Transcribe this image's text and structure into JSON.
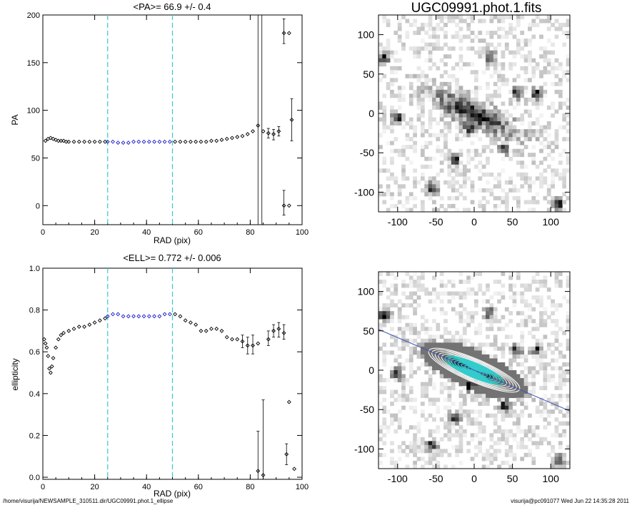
{
  "chart_data": [
    {
      "id": "pa",
      "type": "scatter",
      "title": "<PA>=  66.9 +/-   0.4",
      "xlabel": "RAD (pix)",
      "ylabel": "PA",
      "xlim": [
        0,
        100
      ],
      "ylim": [
        -20,
        200
      ],
      "xticks": [
        "0",
        "20",
        "40",
        "60",
        "80",
        "100"
      ],
      "yticks": [
        "0",
        "50",
        "100",
        "150",
        "200"
      ],
      "vlines": [
        25,
        50
      ],
      "vline_color": "#33cccc",
      "series": [
        {
          "color": "#000000",
          "points": [
            [
              1,
              68
            ],
            [
              2,
              70
            ],
            [
              3,
              71
            ],
            [
              4,
              70
            ],
            [
              5,
              69
            ],
            [
              6,
              68
            ],
            [
              7,
              68
            ],
            [
              8,
              68
            ],
            [
              9,
              67
            ],
            [
              10,
              67
            ],
            [
              12,
              67
            ],
            [
              14,
              67
            ],
            [
              16,
              67
            ],
            [
              18,
              67
            ],
            [
              20,
              67
            ],
            [
              22,
              67
            ],
            [
              24,
              67
            ]
          ]
        },
        {
          "color": "#1a1acc",
          "points": [
            [
              25,
              67
            ],
            [
              27,
              67
            ],
            [
              29,
              66
            ],
            [
              31,
              66
            ],
            [
              33,
              66
            ],
            [
              35,
              67
            ],
            [
              37,
              67
            ],
            [
              39,
              67
            ],
            [
              41,
              67
            ],
            [
              43,
              67
            ],
            [
              45,
              67
            ],
            [
              47,
              67
            ],
            [
              49,
              67
            ]
          ]
        },
        {
          "color": "#000000",
          "points": [
            [
              51,
              67
            ],
            [
              53,
              67
            ],
            [
              55,
              67
            ],
            [
              57,
              67
            ],
            [
              59,
              67
            ],
            [
              61,
              67
            ],
            [
              63,
              67
            ],
            [
              65,
              68
            ],
            [
              67,
              68
            ],
            [
              69,
              69
            ],
            [
              71,
              70
            ],
            [
              73,
              71
            ],
            [
              75,
              72
            ],
            [
              77,
              73
            ],
            [
              79,
              75
            ],
            [
              81,
              78
            ],
            [
              83,
              84
            ],
            [
              85,
              78
            ],
            [
              87,
              76
            ],
            [
              89,
              75
            ],
            [
              91,
              78
            ],
            [
              93,
              181
            ],
            [
              95,
              181
            ],
            [
              96,
              90
            ],
            [
              93,
              0
            ],
            [
              95,
              0
            ]
          ]
        }
      ],
      "error_bars": [
        [
          83,
          84,
          -50,
          210
        ],
        [
          84.5,
          78,
          -50,
          210
        ],
        [
          89,
          75,
          69,
          80
        ],
        [
          91,
          78,
          73,
          83
        ],
        [
          93,
          181,
          170,
          196
        ],
        [
          96,
          90,
          68,
          112
        ],
        [
          93,
          0,
          -10,
          16
        ],
        [
          87,
          76,
          71,
          81
        ]
      ]
    },
    {
      "id": "ell",
      "type": "scatter",
      "title": "<ELL>= 0.772 +/-  0.006",
      "xlabel": "RAD (pix)",
      "ylabel": "ellipticity",
      "xlim": [
        0,
        100
      ],
      "ylim": [
        -0.01,
        1.0
      ],
      "xticks": [
        "0",
        "20",
        "40",
        "60",
        "80",
        "100"
      ],
      "yticks": [
        "0.0",
        "0.2",
        "0.4",
        "0.6",
        "0.8",
        "1.0"
      ],
      "vlines": [
        25,
        50
      ],
      "vline_color": "#33cccc",
      "series": [
        {
          "color": "#000000",
          "points": [
            [
              0.5,
              0.66
            ],
            [
              1,
              0.64
            ],
            [
              1.5,
              0.62
            ],
            [
              2,
              0.58
            ],
            [
              2.5,
              0.52
            ],
            [
              3,
              0.5
            ],
            [
              3.5,
              0.53
            ],
            [
              4,
              0.57
            ],
            [
              5,
              0.62
            ],
            [
              6,
              0.66
            ],
            [
              7,
              0.68
            ],
            [
              8,
              0.69
            ],
            [
              10,
              0.7
            ],
            [
              12,
              0.71
            ],
            [
              14,
              0.72
            ],
            [
              16,
              0.72
            ],
            [
              18,
              0.73
            ],
            [
              20,
              0.74
            ],
            [
              22,
              0.75
            ],
            [
              24,
              0.76
            ]
          ]
        },
        {
          "color": "#1a1acc",
          "points": [
            [
              25,
              0.77
            ],
            [
              27,
              0.78
            ],
            [
              29,
              0.78
            ],
            [
              31,
              0.77
            ],
            [
              33,
              0.77
            ],
            [
              35,
              0.77
            ],
            [
              37,
              0.77
            ],
            [
              39,
              0.77
            ],
            [
              41,
              0.77
            ],
            [
              43,
              0.77
            ],
            [
              45,
              0.77
            ],
            [
              47,
              0.78
            ],
            [
              49,
              0.78
            ]
          ]
        },
        {
          "color": "#000000",
          "points": [
            [
              51,
              0.78
            ],
            [
              53,
              0.77
            ],
            [
              55,
              0.75
            ],
            [
              57,
              0.74
            ],
            [
              59,
              0.73
            ],
            [
              61,
              0.7
            ],
            [
              63,
              0.7
            ],
            [
              65,
              0.71
            ],
            [
              67,
              0.71
            ],
            [
              69,
              0.7
            ],
            [
              71,
              0.67
            ],
            [
              73,
              0.66
            ],
            [
              75,
              0.66
            ],
            [
              77,
              0.65
            ],
            [
              79,
              0.63
            ],
            [
              81,
              0.63
            ],
            [
              83,
              0.64
            ],
            [
              83,
              0.03
            ],
            [
              85,
              0.01
            ],
            [
              87,
              0.66
            ],
            [
              89,
              0.7
            ],
            [
              91,
              0.71
            ],
            [
              93,
              0.69
            ],
            [
              95,
              0.36
            ],
            [
              94,
              0.11
            ],
            [
              97,
              0.04
            ]
          ]
        }
      ],
      "error_bars": [
        [
          83,
          0.03,
          -0.01,
          0.22
        ],
        [
          85,
          0.01,
          -0.01,
          0.37
        ],
        [
          77,
          0.65,
          0.62,
          0.68
        ],
        [
          79,
          0.63,
          0.59,
          0.67
        ],
        [
          81,
          0.63,
          0.59,
          0.68
        ],
        [
          87,
          0.66,
          0.63,
          0.7
        ],
        [
          89,
          0.7,
          0.67,
          0.73
        ],
        [
          91,
          0.71,
          0.67,
          0.74
        ],
        [
          93,
          0.69,
          0.66,
          0.73
        ],
        [
          94,
          0.11,
          0.06,
          0.16
        ]
      ]
    },
    {
      "id": "img1",
      "type": "heatmap",
      "title": "UGC09991.phot.1.fits",
      "xlim": [
        -125,
        125
      ],
      "ylim": [
        -125,
        125
      ],
      "xticks": [
        "-100",
        "-50",
        "0",
        "50",
        "100"
      ],
      "yticks": [
        "-100",
        "-50",
        "0",
        "50",
        "100"
      ],
      "galaxy_pa": 66.9,
      "cmap": "grayscale-inverted"
    },
    {
      "id": "img2",
      "type": "heatmap",
      "title": "",
      "xlim": [
        -125,
        125
      ],
      "ylim": [
        -125,
        125
      ],
      "xticks": [
        "-100",
        "-50",
        "0",
        "50",
        "100"
      ],
      "yticks": [
        "-100",
        "-50",
        "0",
        "50",
        "100"
      ],
      "contour_color": "#33cccc",
      "line_color": "#4455bb"
    }
  ],
  "footer": {
    "left": "/home/visurija/NEWSAMPLE_310511.dir/UGC09991.phot.1_ellipse",
    "right": "visurija@pc091077  Wed Jun 22 14:35:28 2011"
  }
}
